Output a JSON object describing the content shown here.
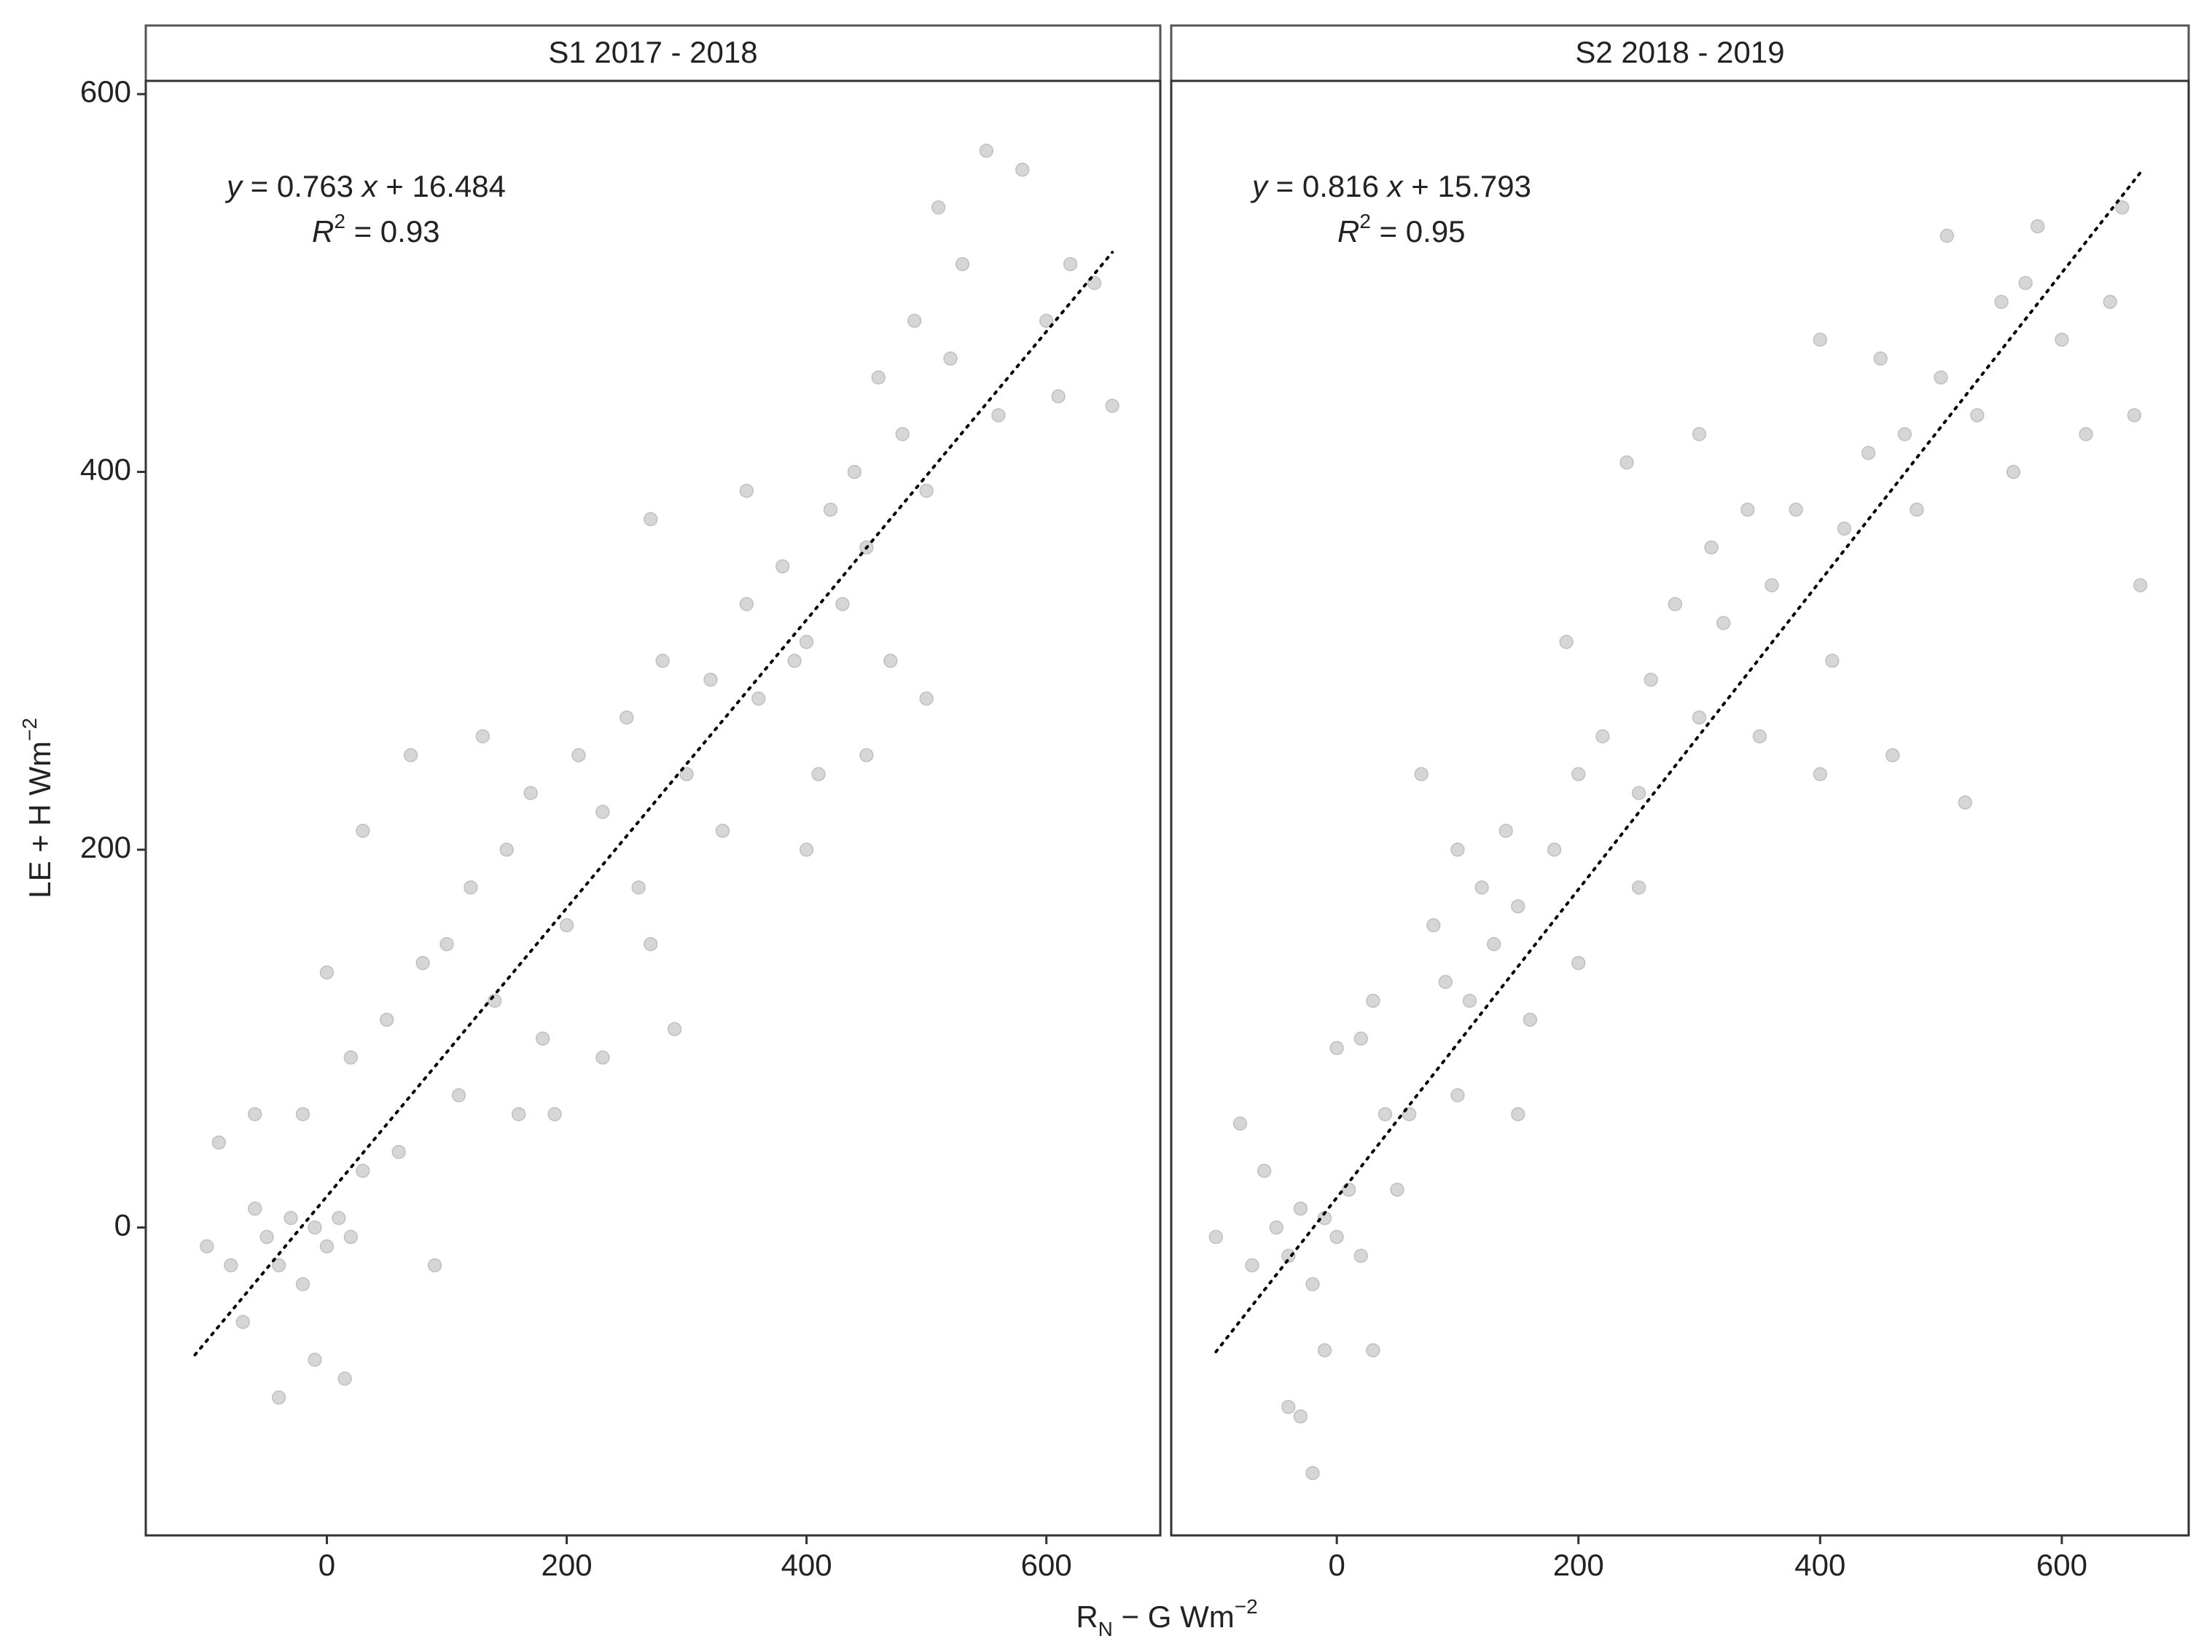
{
  "xlabel": [
    {
      "text": "R"
    },
    {
      "text": "N",
      "sub": true
    },
    {
      "text": " − G Wm"
    },
    {
      "text": "−2",
      "sup": true
    }
  ],
  "ylabel": [
    {
      "text": "LE + H Wm"
    },
    {
      "text": "−2",
      "sup": true
    }
  ],
  "chart_data": [
    {
      "type": "scatter",
      "title": "S1 2017 - 2018",
      "color": "#999999",
      "equation": [
        {
          "text": "y",
          "italic": true
        },
        {
          "text": " = 0.763 "
        },
        {
          "text": "x",
          "italic": true
        },
        {
          "text": " + 16.484"
        }
      ],
      "r_squared": [
        {
          "text": "R",
          "italic": true
        },
        {
          "text": "2",
          "sup": true
        },
        {
          "text": " = 0.93"
        }
      ],
      "fit": {
        "slope": 0.763,
        "intercept": 16.484,
        "x_range": [
          -110,
          655
        ]
      },
      "xlim": [
        -151,
        695
      ],
      "ylim": [
        -163,
        607
      ],
      "xticks": [
        0,
        200,
        400,
        600
      ],
      "yticks": [
        0,
        200,
        400,
        600
      ],
      "x": [
        -100,
        -90,
        -80,
        -60,
        -50,
        -40,
        -30,
        -20,
        -10,
        0,
        10,
        20,
        -40,
        -10,
        15,
        30,
        0,
        -20,
        20,
        50,
        60,
        80,
        100,
        110,
        120,
        140,
        150,
        170,
        180,
        200,
        210,
        230,
        250,
        260,
        270,
        280,
        290,
        300,
        320,
        330,
        350,
        360,
        380,
        390,
        400,
        410,
        420,
        430,
        440,
        450,
        460,
        470,
        480,
        490,
        500,
        510,
        520,
        530,
        550,
        560,
        580,
        600,
        620,
        640,
        655,
        70,
        160,
        -70,
        -60,
        30,
        90,
        190,
        400,
        500,
        230,
        130,
        270,
        350,
        450,
        610
      ],
      "y": [
        -10,
        45,
        -20,
        10,
        -5,
        -20,
        5,
        -30,
        0,
        -10,
        5,
        -5,
        -90,
        -70,
        -80,
        210,
        135,
        60,
        90,
        110,
        40,
        140,
        150,
        70,
        180,
        120,
        200,
        230,
        100,
        160,
        250,
        220,
        270,
        180,
        375,
        300,
        105,
        240,
        290,
        210,
        330,
        280,
        350,
        300,
        310,
        240,
        380,
        330,
        400,
        360,
        450,
        300,
        420,
        480,
        390,
        540,
        460,
        510,
        570,
        430,
        560,
        480,
        510,
        500,
        435,
        250,
        60,
        -50,
        60,
        30,
        -20,
        60,
        200,
        280,
        90,
        260,
        150,
        390,
        250,
        440
      ]
    },
    {
      "type": "scatter",
      "title": "S2 2018 - 2019",
      "color": "#999999",
      "equation": [
        {
          "text": "y",
          "italic": true
        },
        {
          "text": " = 0.816 "
        },
        {
          "text": "x",
          "italic": true
        },
        {
          "text": " + 15.793"
        }
      ],
      "r_squared": [
        {
          "text": "R",
          "italic": true
        },
        {
          "text": "2",
          "sup": true
        },
        {
          "text": " = 0.95"
        }
      ],
      "fit": {
        "slope": 0.816,
        "intercept": 15.793,
        "x_range": [
          -100,
          665
        ]
      },
      "xlim": [
        -137,
        705
      ],
      "ylim": [
        -163,
        607
      ],
      "xticks": [
        0,
        200,
        400,
        600
      ],
      "x": [
        -100,
        -80,
        -70,
        -50,
        -40,
        -30,
        -20,
        -10,
        0,
        10,
        20,
        -40,
        -30,
        -20,
        -10,
        30,
        0,
        20,
        40,
        60,
        70,
        80,
        90,
        100,
        110,
        120,
        130,
        140,
        150,
        160,
        180,
        190,
        200,
        220,
        240,
        250,
        260,
        280,
        300,
        310,
        320,
        340,
        360,
        380,
        400,
        410,
        420,
        440,
        460,
        470,
        480,
        500,
        505,
        520,
        530,
        550,
        570,
        580,
        600,
        620,
        640,
        650,
        665,
        660,
        30,
        100,
        200,
        300,
        400,
        -60,
        50,
        150,
        250,
        350,
        450,
        560
      ],
      "y": [
        -5,
        55,
        -20,
        0,
        -15,
        10,
        -30,
        5,
        -5,
        20,
        -15,
        -95,
        -100,
        -130,
        -65,
        -65,
        95,
        100,
        60,
        60,
        240,
        160,
        130,
        200,
        120,
        180,
        150,
        210,
        170,
        110,
        200,
        310,
        240,
        260,
        405,
        230,
        290,
        330,
        270,
        360,
        320,
        380,
        340,
        380,
        470,
        300,
        370,
        410,
        250,
        420,
        380,
        450,
        525,
        225,
        430,
        490,
        500,
        530,
        470,
        420,
        490,
        540,
        340,
        430,
        120,
        70,
        140,
        420,
        240,
        30,
        20,
        60,
        180,
        260,
        460,
        400
      ]
    }
  ]
}
